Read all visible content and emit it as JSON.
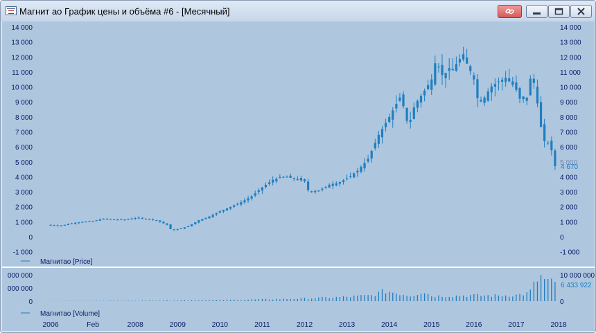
{
  "window": {
    "title": "Магнит ао График цены и объёма #6 - [Месячный]",
    "buttons": {
      "link_icon": "link-icon",
      "minimize_icon": "minimize-icon",
      "maximize_icon": "maximize-icon",
      "close_icon": "close-icon"
    }
  },
  "colors": {
    "background": "#aec6de",
    "candle": "#1e7fc0",
    "text": "#0a1a66",
    "divider": "#ffffff"
  },
  "price_panel": {
    "legend": "Магнитао [Price]",
    "y_ticks_left": [
      "14 000",
      "13 000",
      "12 000",
      "11 000",
      "10 000",
      "9 000",
      "8 000",
      "7 000",
      "6 000",
      "5 000",
      "4 000",
      "3 000",
      "2 000",
      "1 000",
      "0",
      "-1 000"
    ],
    "y_ticks_right": [
      "14 000",
      "13 000",
      "12 000",
      "11 000",
      "10 000",
      "9 000",
      "8 000",
      "7 000",
      "6 000",
      "5 000",
      "4 000",
      "3 000",
      "2 000",
      "1 000",
      "0",
      "-1 000"
    ],
    "last_value": "4 670"
  },
  "volume_panel": {
    "legend": "Магнитао [Volume]",
    "y_ticks_left": [
      "000 000",
      "000 000",
      "0"
    ],
    "y_ticks_right": [
      "10 000 000",
      "0"
    ],
    "last_value": "6 433 922"
  },
  "x_axis": {
    "labels": [
      "2006",
      "Feb",
      "2008",
      "2009",
      "2010",
      "2011",
      "2012",
      "2013",
      "2014",
      "2015",
      "2016",
      "2017",
      "2018"
    ]
  },
  "chart_data": {
    "type": "candlestick",
    "interval": "monthly",
    "price_ylim": [
      -1000,
      14000
    ],
    "volume_ylim": [
      0,
      10000000
    ],
    "x_labels": [
      "2006",
      "Feb",
      "2008",
      "2009",
      "2010",
      "2011",
      "2012",
      "2013",
      "2014",
      "2015",
      "2016",
      "2017",
      "2018"
    ],
    "series": [
      {
        "name": "Магнитао [Price]",
        "close_anchors": [
          [
            2006.0,
            800
          ],
          [
            2006.25,
            750
          ],
          [
            2006.5,
            900
          ],
          [
            2006.75,
            1000
          ],
          [
            2007.0,
            1050
          ],
          [
            2007.25,
            1200
          ],
          [
            2007.5,
            1150
          ],
          [
            2007.75,
            1150
          ],
          [
            2008.0,
            1250
          ],
          [
            2008.3,
            1200
          ],
          [
            2008.5,
            1100
          ],
          [
            2008.75,
            800
          ],
          [
            2008.85,
            450
          ],
          [
            2009.0,
            500
          ],
          [
            2009.25,
            700
          ],
          [
            2009.5,
            1100
          ],
          [
            2009.75,
            1350
          ],
          [
            2010.0,
            1700
          ],
          [
            2010.25,
            2000
          ],
          [
            2010.5,
            2300
          ],
          [
            2010.75,
            2700
          ],
          [
            2011.0,
            3300
          ],
          [
            2011.25,
            3800
          ],
          [
            2011.5,
            4000
          ],
          [
            2011.75,
            3900
          ],
          [
            2012.0,
            3700
          ],
          [
            2012.1,
            3000
          ],
          [
            2012.35,
            3100
          ],
          [
            2012.6,
            3500
          ],
          [
            2012.8,
            3600
          ],
          [
            2013.0,
            3900
          ],
          [
            2013.25,
            4400
          ],
          [
            2013.5,
            5200
          ],
          [
            2013.75,
            6800
          ],
          [
            2014.0,
            8000
          ],
          [
            2014.25,
            9300
          ],
          [
            2014.35,
            8600
          ],
          [
            2014.45,
            7300
          ],
          [
            2014.6,
            8800
          ],
          [
            2014.8,
            9600
          ],
          [
            2015.0,
            10500
          ],
          [
            2015.1,
            11800
          ],
          [
            2015.25,
            10800
          ],
          [
            2015.5,
            11200
          ],
          [
            2015.7,
            12000
          ],
          [
            2015.85,
            11500
          ],
          [
            2016.0,
            10500
          ],
          [
            2016.1,
            9000
          ],
          [
            2016.25,
            9300
          ],
          [
            2016.4,
            10000
          ],
          [
            2016.6,
            10400
          ],
          [
            2016.75,
            10600
          ],
          [
            2016.9,
            10200
          ],
          [
            2017.0,
            9800
          ],
          [
            2017.1,
            9100
          ],
          [
            2017.25,
            9300
          ],
          [
            2017.35,
            10800
          ],
          [
            2017.45,
            10000
          ],
          [
            2017.55,
            7800
          ],
          [
            2017.65,
            6400
          ],
          [
            2017.8,
            6200
          ],
          [
            2017.92,
            4670
          ]
        ]
      },
      {
        "name": "Магнитао [Volume]",
        "volume_anchors": [
          [
            2006.0,
            50000
          ],
          [
            2007.0,
            100000
          ],
          [
            2008.0,
            200000
          ],
          [
            2009.0,
            350000
          ],
          [
            2010.0,
            450000
          ],
          [
            2011.0,
            650000
          ],
          [
            2012.0,
            1000000
          ],
          [
            2013.0,
            1600000
          ],
          [
            2013.6,
            2200000
          ],
          [
            2013.9,
            3900000
          ],
          [
            2014.1,
            3300000
          ],
          [
            2014.5,
            2100000
          ],
          [
            2014.8,
            3700000
          ],
          [
            2015.0,
            2000000
          ],
          [
            2015.5,
            2000000
          ],
          [
            2016.0,
            2200000
          ],
          [
            2016.5,
            2100000
          ],
          [
            2017.0,
            2300000
          ],
          [
            2017.3,
            3000000
          ],
          [
            2017.55,
            9500000
          ],
          [
            2017.7,
            7600000
          ],
          [
            2017.92,
            6433922
          ]
        ]
      }
    ]
  }
}
